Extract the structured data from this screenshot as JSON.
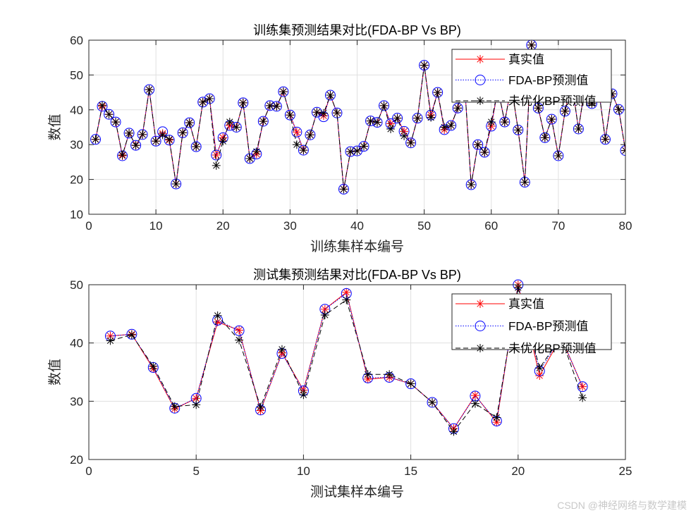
{
  "watermark": "CSDN @神经网络与数学建模",
  "colors": {
    "true": "#ff0000",
    "fda": "#0000ff",
    "bp": "#000000",
    "grid": "#e0e0e0",
    "axis": "#262626"
  },
  "chart_data": [
    {
      "type": "line",
      "title": "训练集预测结果对比(FDA-BP Vs BP)",
      "xlabel": "训练集样本编号",
      "ylabel": "数值",
      "xlim": [
        0,
        80
      ],
      "ylim": [
        10,
        60
      ],
      "xticks": [
        0,
        10,
        20,
        30,
        40,
        50,
        60,
        70,
        80
      ],
      "yticks": [
        10,
        20,
        30,
        40,
        50,
        60
      ],
      "grid": true,
      "legend_position": "top-right",
      "x": [
        1,
        2,
        3,
        4,
        5,
        6,
        7,
        8,
        9,
        10,
        11,
        12,
        13,
        14,
        15,
        16,
        17,
        18,
        19,
        20,
        21,
        22,
        23,
        24,
        25,
        26,
        27,
        28,
        29,
        30,
        31,
        32,
        33,
        34,
        35,
        36,
        37,
        38,
        39,
        40,
        41,
        42,
        43,
        44,
        45,
        46,
        47,
        48,
        49,
        50,
        51,
        52,
        53,
        54,
        55,
        56,
        57,
        58,
        59,
        60,
        61,
        62,
        63,
        64,
        65,
        66,
        67,
        68,
        69,
        70,
        71,
        72,
        73,
        74,
        75,
        76,
        77,
        78,
        79,
        80
      ],
      "series": [
        {
          "name": "真实值",
          "style": "red-solid-star",
          "values": [
            31.5,
            41,
            38.7,
            36.5,
            26.8,
            33.3,
            29.8,
            32.9,
            45.8,
            31,
            33.2,
            31.3,
            18.7,
            33.4,
            36.3,
            29.4,
            42.2,
            43.2,
            27,
            32,
            35.5,
            35,
            42,
            26,
            27.3,
            36.7,
            41.2,
            41,
            45.2,
            38.5,
            33.6,
            28.4,
            32.8,
            39.3,
            38.3,
            44.2,
            39.1,
            17.2,
            28,
            28.2,
            29.5,
            36.8,
            36.4,
            41.2,
            36,
            37.6,
            33.8,
            30.5,
            37.6,
            52.8,
            38.5,
            45,
            34.3,
            35.5,
            40.5,
            48,
            18.5,
            30,
            27.8,
            35.3,
            46,
            36.5,
            47,
            34.2,
            19.2,
            58.6,
            40.5,
            32,
            37.3,
            26.8,
            39.6,
            48,
            34.5,
            47,
            41.8,
            46,
            31.5,
            44.6,
            40.1,
            28.3
          ]
        },
        {
          "name": "FDA-BP预测值",
          "style": "blue-dotted-circle",
          "values": [
            31.5,
            41,
            38.7,
            36.5,
            26.8,
            33.3,
            29.8,
            32.9,
            45.8,
            31,
            33.7,
            31.3,
            18.7,
            33.4,
            36.3,
            29.4,
            42.2,
            43.2,
            27,
            32,
            35.5,
            35,
            42,
            26,
            27.3,
            36.7,
            41.2,
            41,
            45.2,
            38.5,
            33.6,
            28.4,
            32.8,
            39.3,
            38,
            44.2,
            39.1,
            17.2,
            28,
            28.2,
            29.5,
            36.8,
            36.4,
            41.2,
            36,
            37.6,
            33.8,
            30.5,
            37.6,
            52.8,
            38.5,
            45,
            34.3,
            35.5,
            40.5,
            48,
            18.5,
            30,
            27.8,
            35.3,
            46,
            36.5,
            47,
            34.2,
            19.2,
            58.6,
            40.5,
            32,
            37.3,
            26.8,
            39.6,
            48,
            34.5,
            47,
            41.8,
            46,
            31.5,
            44.6,
            40.1,
            28.3
          ]
        },
        {
          "name": "未优化BP预测值",
          "style": "black-dashed-star",
          "values": [
            31.5,
            41.3,
            38.7,
            36.5,
            27,
            33.3,
            29.8,
            32.9,
            45.8,
            31,
            32.8,
            31.5,
            18.7,
            33.4,
            36.3,
            29.4,
            42.2,
            43.2,
            24,
            31,
            36.5,
            35,
            42,
            26,
            28,
            36.7,
            41.2,
            41,
            45.2,
            38.5,
            30,
            28.4,
            32.8,
            39.3,
            39,
            44.2,
            39.1,
            17.2,
            28,
            28.2,
            29.5,
            36.8,
            36.4,
            41.2,
            34.5,
            37.6,
            32.5,
            30.5,
            37.6,
            52.8,
            37.8,
            45,
            35,
            35.5,
            40.5,
            48,
            18.5,
            30,
            27.8,
            36.5,
            46,
            36.5,
            47,
            34.2,
            19.2,
            58.6,
            40.5,
            32,
            37.3,
            26.8,
            39.6,
            48,
            34.5,
            47,
            41.8,
            46,
            31.5,
            44.6,
            40.1,
            28.3
          ]
        }
      ]
    },
    {
      "type": "line",
      "title": "测试集预测结果对比(FDA-BP Vs BP)",
      "xlabel": "测试集样本编号",
      "ylabel": "数值",
      "xlim": [
        0,
        25
      ],
      "ylim": [
        20,
        50
      ],
      "xticks": [
        0,
        5,
        10,
        15,
        20,
        25
      ],
      "yticks": [
        20,
        30,
        40,
        50
      ],
      "grid": true,
      "legend_position": "top-right",
      "x": [
        1,
        2,
        3,
        4,
        5,
        6,
        7,
        8,
        9,
        10,
        11,
        12,
        13,
        14,
        15,
        16,
        17,
        18,
        19,
        20,
        21,
        22,
        23
      ],
      "series": [
        {
          "name": "真实值",
          "style": "red-solid-star",
          "values": [
            41.2,
            41.5,
            35.6,
            28.7,
            30.5,
            43.6,
            42.2,
            28.4,
            38.3,
            31.9,
            45.8,
            48.7,
            33.8,
            34.1,
            33,
            29.8,
            25.3,
            31,
            26.4,
            50,
            34.4,
            41,
            32.5
          ]
        },
        {
          "name": "FDA-BP预测值",
          "style": "blue-dotted-circle",
          "values": [
            41.2,
            41.5,
            35.8,
            28.8,
            30.5,
            43.9,
            42.1,
            28.5,
            38.2,
            31.8,
            45.8,
            48.5,
            34,
            34.1,
            33,
            29.8,
            25.3,
            30.9,
            26.6,
            50,
            35.2,
            41,
            32.5
          ]
        },
        {
          "name": "未优化BP预测值",
          "style": "black-dashed-star",
          "values": [
            40.4,
            41.4,
            36,
            29.1,
            29.4,
            44.7,
            40.5,
            29,
            38.9,
            31.1,
            44.8,
            47.4,
            34.6,
            34.6,
            33,
            29.8,
            24.8,
            29.6,
            27.2,
            49.5,
            35.7,
            41,
            30.6
          ]
        }
      ]
    }
  ]
}
